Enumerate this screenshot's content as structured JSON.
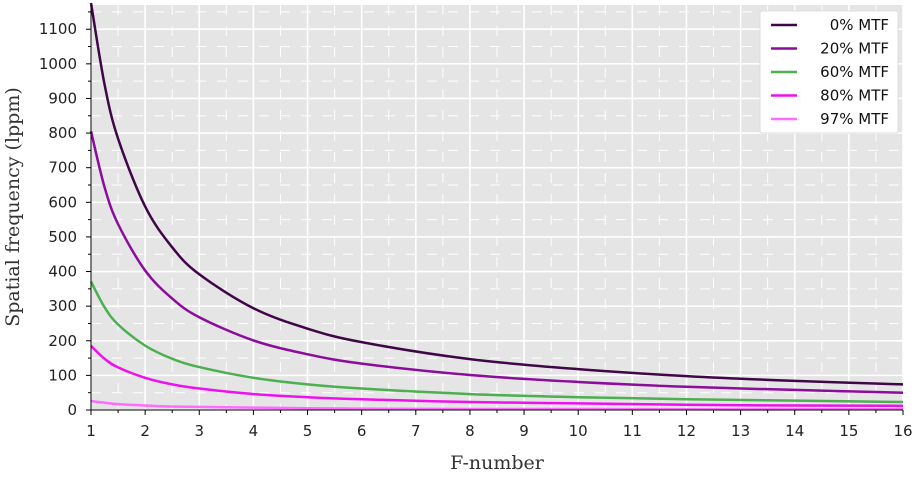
{
  "chart_data": {
    "type": "line",
    "title": "",
    "xlabel": "F-number",
    "ylabel": "Spatial frequency (lppm)",
    "xlim": [
      1,
      16
    ],
    "ylim": [
      0,
      1170
    ],
    "xticks": [
      1,
      2,
      3,
      4,
      5,
      6,
      7,
      8,
      9,
      10,
      11,
      12,
      13,
      14,
      15,
      16
    ],
    "yticks": [
      0,
      100,
      200,
      300,
      400,
      500,
      600,
      700,
      800,
      900,
      1000,
      1100
    ],
    "grid": true,
    "legend_position": "top-right",
    "background_color": "#e5e5e5",
    "x": [
      1,
      1.25,
      1.5,
      2,
      2.5,
      3,
      4,
      5,
      6,
      8,
      10,
      12,
      14,
      16
    ],
    "series": [
      {
        "name": "0% MTF",
        "color": "#3f0747",
        "values": [
          1176,
          941,
          784,
          588,
          470,
          392,
          294,
          235,
          196,
          147,
          118,
          98,
          84,
          74
        ]
      },
      {
        "name": "20% MTF",
        "color": "#8c0c9c",
        "values": [
          805,
          644,
          537,
          403,
          322,
          268,
          201,
          161,
          134,
          101,
          81,
          67,
          58,
          50
        ]
      },
      {
        "name": "60% MTF",
        "color": "#4caf50",
        "values": [
          371,
          297,
          247,
          186,
          148,
          124,
          93,
          74,
          62,
          46,
          37,
          31,
          27,
          23
        ]
      },
      {
        "name": "80% MTF",
        "color": "#ee10ee",
        "values": [
          185,
          148,
          123,
          93,
          74,
          62,
          46,
          37,
          31,
          23,
          19,
          15,
          13,
          12
        ]
      },
      {
        "name": "97% MTF",
        "color": "#ff6cff",
        "values": [
          26,
          21,
          17,
          13,
          10,
          9,
          7,
          5,
          4,
          3,
          3,
          2,
          2,
          2
        ]
      }
    ]
  }
}
